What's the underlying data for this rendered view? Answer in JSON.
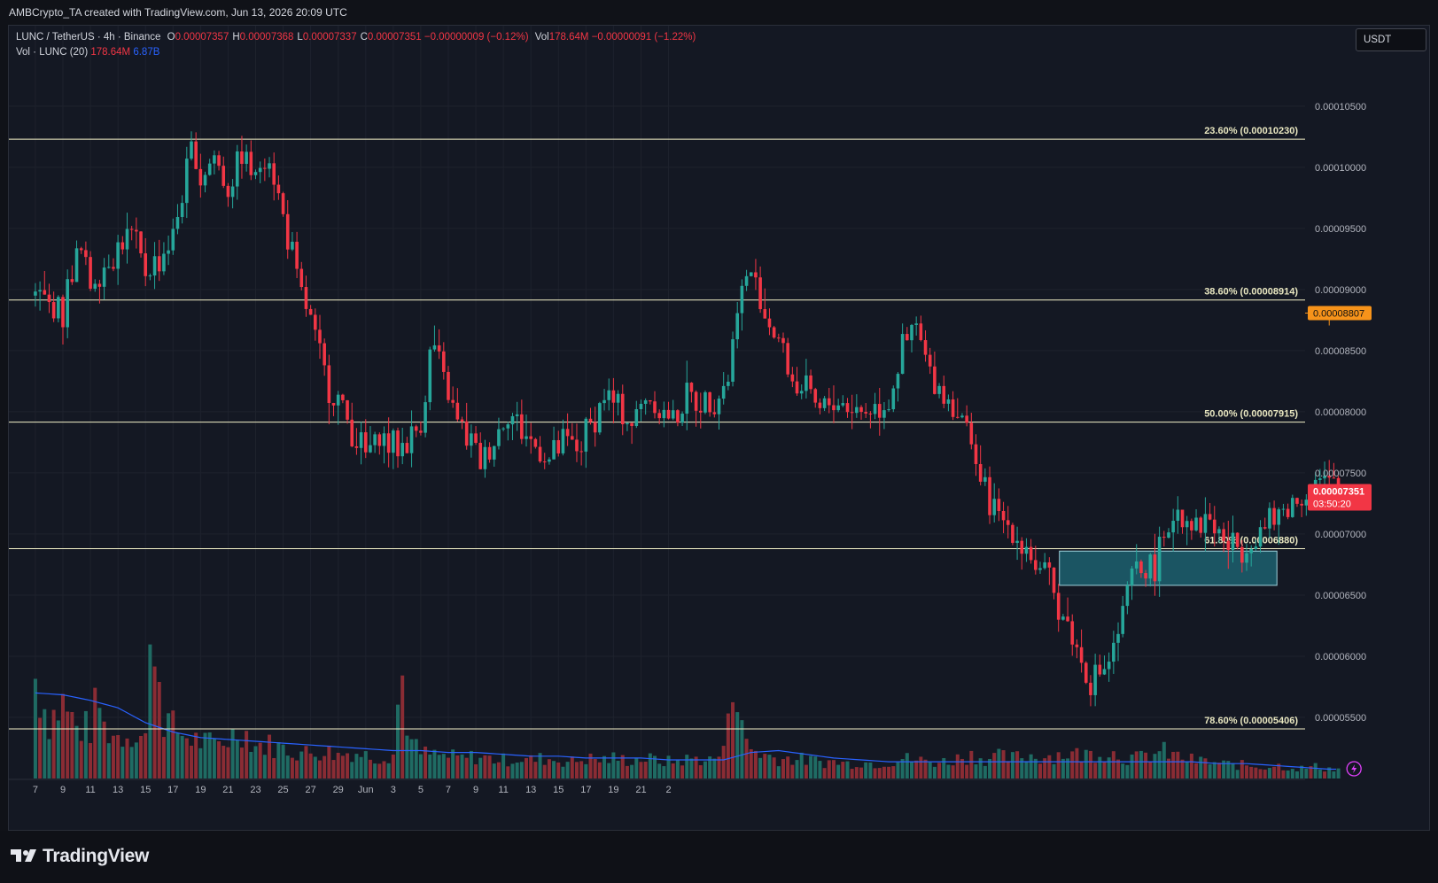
{
  "header": {
    "created_text": "AMBCrypto_TA created with TradingView.com, Jun 13, 2026 20:09 UTC"
  },
  "legend": {
    "symbol": "LUNC / TetherUS · 4h · Binance",
    "ohlc": [
      {
        "k": "O",
        "v": "0.00007357"
      },
      {
        "k": "H",
        "v": "0.00007368"
      },
      {
        "k": "L",
        "v": "0.00007337"
      },
      {
        "k": "C",
        "v": "0.00007351"
      }
    ],
    "change": "−0.00000009 (−0.12%)",
    "vol_label": "Vol",
    "vol_value": "178.64M",
    "vol_change": "−0.00000091 (−1.22%)",
    "volume_indicator": "Vol · LUNC (20)",
    "volume_value": "178.64M",
    "volume_ma_value": "6.87B"
  },
  "currency_button": "USDT",
  "brand": {
    "name": "TradingView"
  },
  "colors": {
    "up": "#26a69a",
    "down": "#f23645",
    "fib": "#f3f1c8",
    "resistance": "#f7931a",
    "zone": "#1d6a7a",
    "ma": "#2962ff",
    "price_tag": "#f23645"
  },
  "chart_data": {
    "type": "candlestick",
    "symbol": "LUNC / TetherUS",
    "timeframe": "4h",
    "exchange": "Binance",
    "ylim": [
      5e-05,
      0.000111
    ],
    "y_ticks": [
      "0.00010500",
      "0.00010000",
      "0.00009500",
      "0.00009000",
      "0.00008500",
      "0.00008000",
      "0.00007500",
      "0.00007000",
      "0.00006500",
      "0.00006000",
      "0.00005500"
    ],
    "x_ticks": [
      "7",
      "9",
      "11",
      "13",
      "15",
      "17",
      "19",
      "21",
      "23",
      "25",
      "27",
      "29",
      "Jun",
      "3",
      "5",
      "7",
      "9",
      "11",
      "13",
      "15",
      "17",
      "19",
      "21",
      "2"
    ],
    "fib_levels": [
      {
        "label": "23.60% (0.00010230)",
        "value": 0.0001023
      },
      {
        "label": "38.60% (0.00008914)",
        "value": 8.914e-05
      },
      {
        "label": "50.00% (0.00007915)",
        "value": 7.915e-05
      },
      {
        "label": "61.80% (0.00006880)",
        "value": 6.88e-05
      },
      {
        "label": "78.60% (0.00005406)",
        "value": 5.406e-05
      }
    ],
    "resistance": {
      "label": "0.00008807",
      "value": 8.807e-05,
      "from": 46.0
    },
    "demand_zone": {
      "from": 36.2,
      "to": 44.1,
      "low": 6.58e-05,
      "high": 6.86e-05
    },
    "last_price": {
      "label": "0.00007351",
      "countdown": "03:50:20",
      "value": 7.351e-05
    },
    "price_path": [
      [
        -1.0,
        8.95e-05
      ],
      [
        0.0,
        8.8e-05
      ],
      [
        0.3,
        9.15e-05
      ],
      [
        0.6,
        9.35e-05
      ],
      [
        1.0,
        9.05e-05
      ],
      [
        1.5,
        9.2e-05
      ],
      [
        2.0,
        9.35e-05
      ],
      [
        2.5,
        9.45e-05
      ],
      [
        3.0,
        9.15e-05
      ],
      [
        3.5,
        9.25e-05
      ],
      [
        4.0,
        9.45e-05
      ],
      [
        4.4,
        9.85e-05
      ],
      [
        4.7,
        0.000102
      ],
      [
        5.0,
        9.9e-05
      ],
      [
        5.5,
        0.000101
      ],
      [
        6.0,
        9.8e-05
      ],
      [
        6.5,
        0.0001015
      ],
      [
        7.0,
        9.9e-05
      ],
      [
        7.4,
        0.000102
      ],
      [
        8.0,
        9.6e-05
      ],
      [
        8.6,
        9e-05
      ],
      [
        9.0,
        8.75e-05
      ],
      [
        9.5,
        8.3e-05
      ],
      [
        10.0,
        8.1e-05
      ],
      [
        10.5,
        7.85e-05
      ],
      [
        11.0,
        7.65e-05
      ],
      [
        11.5,
        7.8e-05
      ],
      [
        12.0,
        7.7e-05
      ],
      [
        12.5,
        7.75e-05
      ],
      [
        13.0,
        7.9e-05
      ],
      [
        13.4,
        8.6e-05
      ],
      [
        13.8,
        8.3e-05
      ],
      [
        14.3,
        7.9e-05
      ],
      [
        14.8,
        7.75e-05
      ],
      [
        15.2,
        7.6e-05
      ],
      [
        15.7,
        7.8e-05
      ],
      [
        16.2,
        8e-05
      ],
      [
        16.7,
        7.85e-05
      ],
      [
        17.2,
        7.7e-05
      ],
      [
        17.7,
        7.6e-05
      ],
      [
        18.2,
        7.75e-05
      ],
      [
        18.7,
        7.7e-05
      ],
      [
        19.2,
        7.9e-05
      ],
      [
        19.7,
        8.15e-05
      ],
      [
        20.2,
        8e-05
      ],
      [
        20.7,
        7.9e-05
      ],
      [
        21.2,
        8.15e-05
      ],
      [
        21.7,
        8e-05
      ],
      [
        22.2,
        7.95e-05
      ],
      [
        22.7,
        8.1e-05
      ],
      [
        23.2,
        8.1e-05
      ],
      [
        23.8,
        8.15e-05
      ],
      [
        24.2,
        8.3e-05
      ],
      [
        24.5,
        8.9e-05
      ],
      [
        25.0,
        9.15e-05
      ],
      [
        25.5,
        8.8e-05
      ],
      [
        26.0,
        8.6e-05
      ],
      [
        26.5,
        8.25e-05
      ],
      [
        27.0,
        8.15e-05
      ],
      [
        27.5,
        8e-05
      ],
      [
        28.0,
        8.1e-05
      ],
      [
        28.5,
        8.05e-05
      ],
      [
        29.0,
        8e-05
      ],
      [
        29.5,
        8.05e-05
      ],
      [
        30.0,
        8.1e-05
      ],
      [
        30.5,
        8.5e-05
      ],
      [
        31.0,
        8.7e-05
      ],
      [
        31.5,
        8.3e-05
      ],
      [
        32.0,
        8.15e-05
      ],
      [
        32.5,
        8e-05
      ],
      [
        33.0,
        7.8e-05
      ],
      [
        33.4,
        7.35e-05
      ],
      [
        33.8,
        7.2e-05
      ],
      [
        34.2,
        7.1e-05
      ],
      [
        34.6,
        7e-05
      ],
      [
        35.0,
        6.9e-05
      ],
      [
        35.4,
        6.7e-05
      ],
      [
        35.8,
        6.6e-05
      ],
      [
        36.2,
        6.4e-05
      ],
      [
        36.6,
        6.2e-05
      ],
      [
        37.0,
        5.95e-05
      ],
      [
        37.4,
        5.8e-05
      ],
      [
        37.8,
        5.9e-05
      ],
      [
        38.1,
        6e-05
      ],
      [
        38.4,
        6.25e-05
      ],
      [
        38.8,
        6.65e-05
      ],
      [
        39.2,
        6.7e-05
      ],
      [
        39.6,
        6.75e-05
      ],
      [
        40.0,
        6.9e-05
      ],
      [
        40.4,
        7.25e-05
      ],
      [
        40.8,
        7.15e-05
      ],
      [
        41.2,
        7.05e-05
      ],
      [
        41.6,
        7.15e-05
      ],
      [
        42.0,
        7e-05
      ],
      [
        42.4,
        6.9e-05
      ],
      [
        42.8,
        6.9e-05
      ],
      [
        43.2,
        6.95e-05
      ],
      [
        43.6,
        7.05e-05
      ],
      [
        44.0,
        7.1e-05
      ],
      [
        44.4,
        7.2e-05
      ],
      [
        44.8,
        7.25e-05
      ],
      [
        45.2,
        7.35e-05
      ],
      [
        45.6,
        7.45e-05
      ],
      [
        46.0,
        7.38e-05
      ],
      [
        46.4,
        7.35e-05
      ]
    ],
    "volume_path": [
      [
        -1.0,
        0.6
      ],
      [
        -0.5,
        0.35
      ],
      [
        0.0,
        0.45
      ],
      [
        0.5,
        0.3
      ],
      [
        1.0,
        0.3
      ],
      [
        1.3,
        0.48
      ],
      [
        1.5,
        0.3
      ],
      [
        2.0,
        0.25
      ],
      [
        2.5,
        0.28
      ],
      [
        3.0,
        0.25
      ],
      [
        3.3,
        1.0
      ],
      [
        3.6,
        0.4
      ],
      [
        4.0,
        0.3
      ],
      [
        4.5,
        0.25
      ],
      [
        5.0,
        0.22
      ],
      [
        5.5,
        0.2
      ],
      [
        6.0,
        0.24
      ],
      [
        6.5,
        0.3
      ],
      [
        7.0,
        0.2
      ],
      [
        7.5,
        0.2
      ],
      [
        8.0,
        0.18
      ],
      [
        8.5,
        0.16
      ],
      [
        9.0,
        0.15
      ],
      [
        9.5,
        0.17
      ],
      [
        10.0,
        0.14
      ],
      [
        10.5,
        0.16
      ],
      [
        11.0,
        0.14
      ],
      [
        11.5,
        0.13
      ],
      [
        12.0,
        0.15
      ],
      [
        12.3,
        0.65
      ],
      [
        12.6,
        0.22
      ],
      [
        13.0,
        0.15
      ],
      [
        13.5,
        0.14
      ],
      [
        14.0,
        0.13
      ],
      [
        14.5,
        0.12
      ],
      [
        15.0,
        0.13
      ],
      [
        15.5,
        0.12
      ],
      [
        16.0,
        0.11
      ],
      [
        16.5,
        0.12
      ],
      [
        17.0,
        0.11
      ],
      [
        17.5,
        0.12
      ],
      [
        18.0,
        0.11
      ],
      [
        18.5,
        0.1
      ],
      [
        19.0,
        0.12
      ],
      [
        19.5,
        0.11
      ],
      [
        20.0,
        0.12
      ],
      [
        20.5,
        0.11
      ],
      [
        21.0,
        0.12
      ],
      [
        21.5,
        0.11
      ],
      [
        22.0,
        0.1
      ],
      [
        22.5,
        0.11
      ],
      [
        23.0,
        0.12
      ],
      [
        23.5,
        0.11
      ],
      [
        24.0,
        0.15
      ],
      [
        24.3,
        0.75
      ],
      [
        24.6,
        0.3
      ],
      [
        25.0,
        0.18
      ],
      [
        25.5,
        0.14
      ],
      [
        26.0,
        0.12
      ],
      [
        26.5,
        0.12
      ],
      [
        27.0,
        0.11
      ],
      [
        27.5,
        0.1
      ],
      [
        28.0,
        0.1
      ],
      [
        28.5,
        0.09
      ],
      [
        29.0,
        0.1
      ],
      [
        29.5,
        0.09
      ],
      [
        30.0,
        0.1
      ],
      [
        30.5,
        0.12
      ],
      [
        31.0,
        0.11
      ],
      [
        31.5,
        0.1
      ],
      [
        32.0,
        0.1
      ],
      [
        32.5,
        0.12
      ],
      [
        33.0,
        0.14
      ],
      [
        33.5,
        0.12
      ],
      [
        34.0,
        0.13
      ],
      [
        34.5,
        0.12
      ],
      [
        35.0,
        0.14
      ],
      [
        35.5,
        0.13
      ],
      [
        36.0,
        0.14
      ],
      [
        36.5,
        0.15
      ],
      [
        37.0,
        0.14
      ],
      [
        37.5,
        0.15
      ],
      [
        38.0,
        0.16
      ],
      [
        38.5,
        0.13
      ],
      [
        39.0,
        0.12
      ],
      [
        39.5,
        0.14
      ],
      [
        40.0,
        0.16
      ],
      [
        40.5,
        0.13
      ],
      [
        41.0,
        0.11
      ],
      [
        41.5,
        0.1
      ],
      [
        42.0,
        0.09
      ],
      [
        42.5,
        0.08
      ],
      [
        43.0,
        0.08
      ],
      [
        43.5,
        0.07
      ],
      [
        44.0,
        0.08
      ],
      [
        44.5,
        0.07
      ],
      [
        45.0,
        0.06
      ],
      [
        45.5,
        0.07
      ],
      [
        46.0,
        0.06
      ],
      [
        46.4,
        0.05
      ]
    ],
    "volume_ma_path": [
      [
        -1.0,
        0.46
      ],
      [
        0.0,
        0.45
      ],
      [
        1.0,
        0.42
      ],
      [
        2.0,
        0.38
      ],
      [
        3.0,
        0.3
      ],
      [
        4.0,
        0.25
      ],
      [
        5.0,
        0.22
      ],
      [
        6.0,
        0.21
      ],
      [
        7.0,
        0.2
      ],
      [
        8.0,
        0.19
      ],
      [
        9.0,
        0.18
      ],
      [
        10.0,
        0.17
      ],
      [
        11.0,
        0.16
      ],
      [
        12.0,
        0.15
      ],
      [
        13.0,
        0.15
      ],
      [
        14.0,
        0.14
      ],
      [
        15.0,
        0.14
      ],
      [
        16.0,
        0.13
      ],
      [
        17.0,
        0.12
      ],
      [
        18.0,
        0.12
      ],
      [
        19.0,
        0.11
      ],
      [
        20.0,
        0.11
      ],
      [
        21.0,
        0.11
      ],
      [
        22.0,
        0.1
      ],
      [
        23.0,
        0.1
      ],
      [
        24.0,
        0.1
      ],
      [
        25.0,
        0.14
      ],
      [
        26.0,
        0.15
      ],
      [
        27.0,
        0.13
      ],
      [
        28.0,
        0.11
      ],
      [
        29.0,
        0.1
      ],
      [
        30.0,
        0.09
      ],
      [
        31.0,
        0.09
      ],
      [
        32.0,
        0.09
      ],
      [
        33.0,
        0.09
      ],
      [
        34.0,
        0.09
      ],
      [
        35.0,
        0.09
      ],
      [
        36.0,
        0.09
      ],
      [
        37.0,
        0.09
      ],
      [
        38.0,
        0.09
      ],
      [
        39.0,
        0.09
      ],
      [
        40.0,
        0.09
      ],
      [
        41.0,
        0.09
      ],
      [
        42.0,
        0.08
      ],
      [
        43.0,
        0.08
      ],
      [
        44.0,
        0.07
      ],
      [
        45.0,
        0.06
      ],
      [
        46.0,
        0.05
      ],
      [
        46.4,
        0.05
      ]
    ]
  }
}
